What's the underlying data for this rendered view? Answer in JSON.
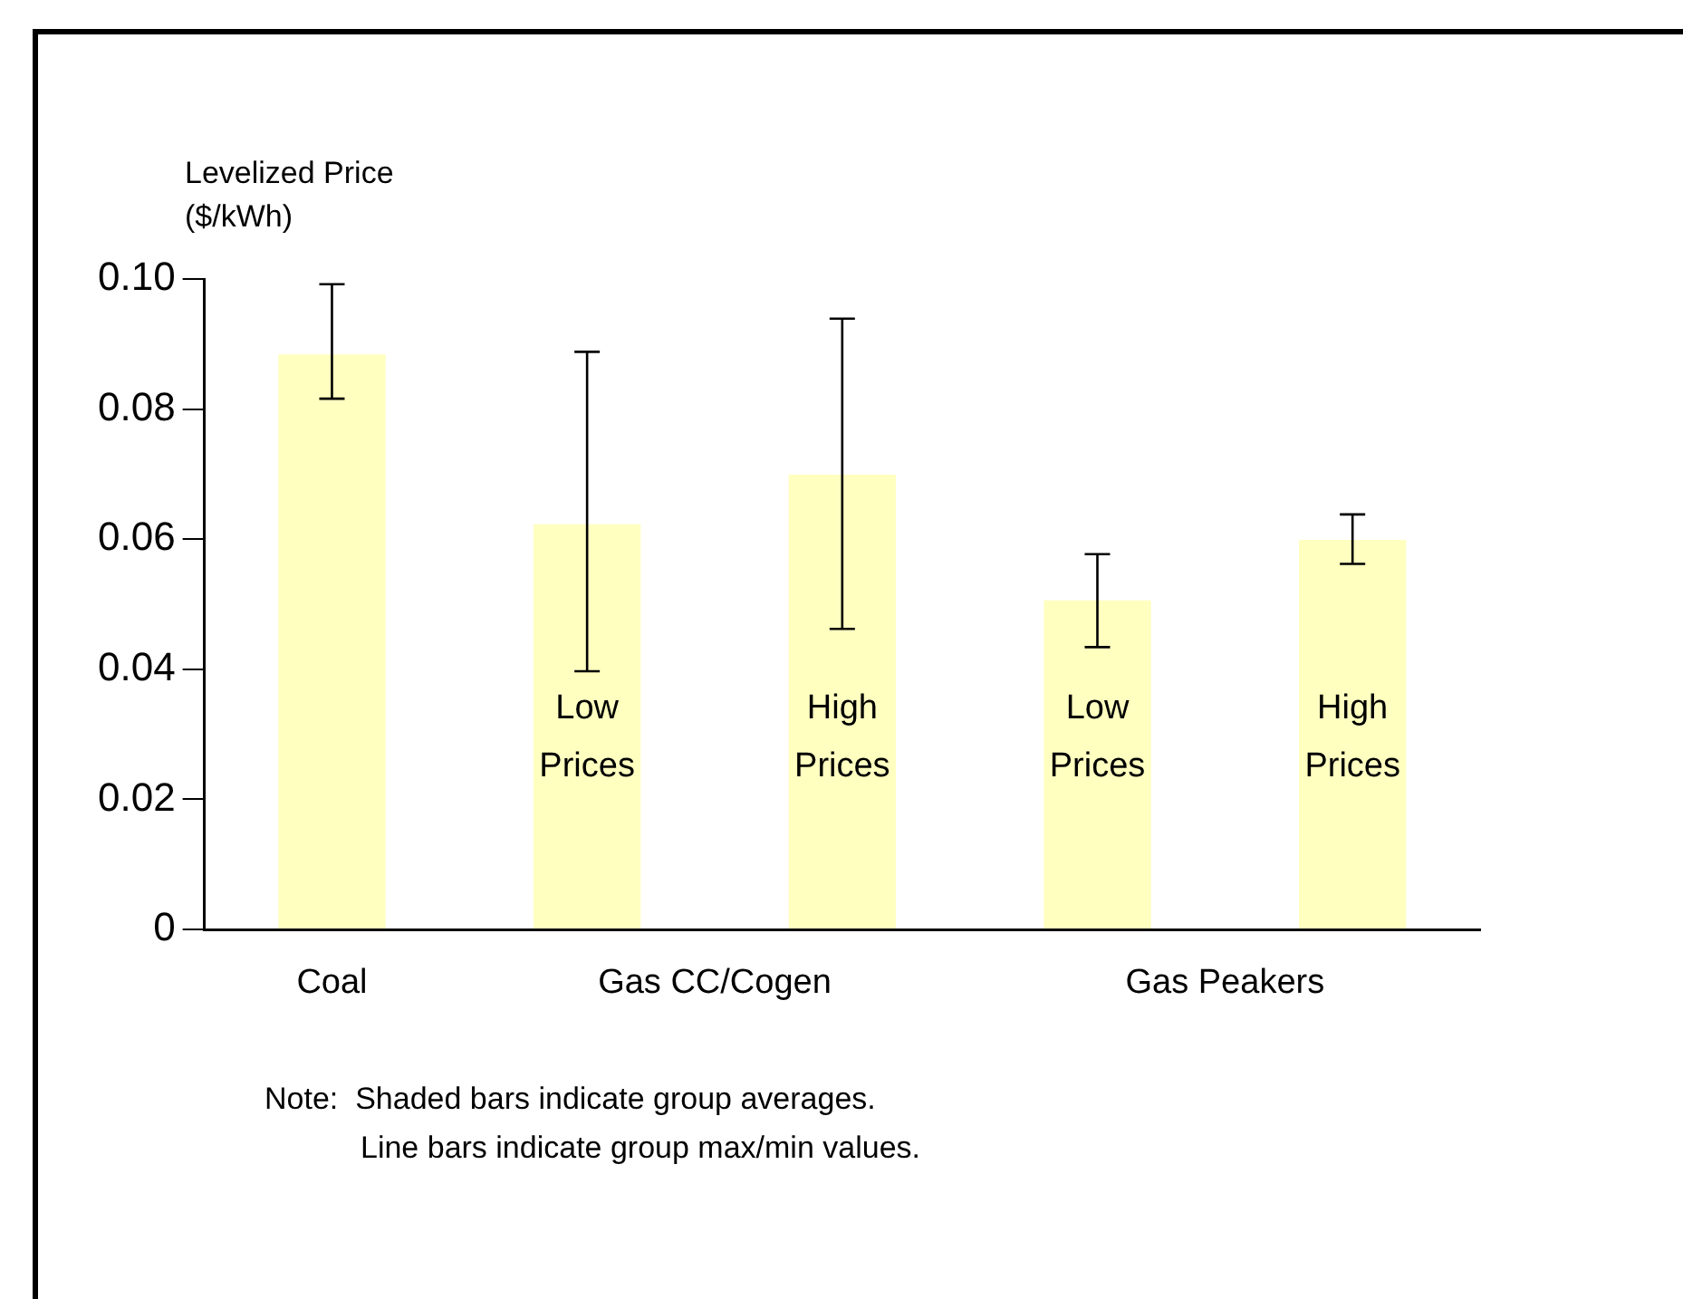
{
  "chart_data": {
    "type": "bar",
    "ylabel": "Levelized Price ($/kWh)",
    "categories": [
      null,
      "Low Prices",
      "High Prices",
      "Low Prices",
      "High Prices"
    ],
    "values": [
      0.0884,
      0.0623,
      0.0699,
      0.0506,
      0.0599
    ],
    "errors": [
      [
        0.0816,
        0.0992
      ],
      [
        0.0397,
        0.0888
      ],
      [
        0.0462,
        0.0939
      ],
      [
        0.0434,
        0.0577
      ],
      [
        0.0562,
        0.0638
      ]
    ],
    "color": "#ffffc0",
    "ylim": [
      0,
      0.1
    ],
    "yticks": [
      0,
      0.02,
      0.04,
      0.06,
      0.08,
      {
        "value": 0.1,
        "label": "0.10"
      }
    ],
    "grid": false,
    "annotations": [
      "Coal",
      "Gas CC/Cogen",
      "Gas Peakers",
      "Note:  Shaded bars indicate group averages.",
      "Line bars indicate group max/min values."
    ]
  }
}
